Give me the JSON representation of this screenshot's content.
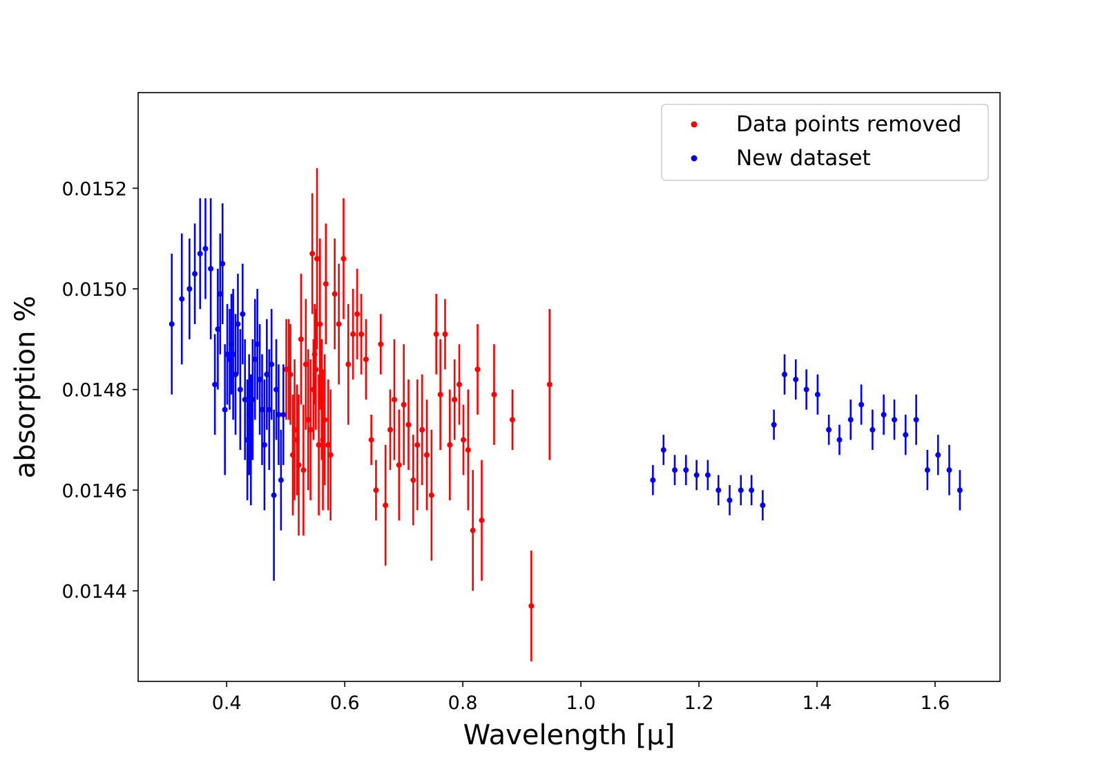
{
  "chart_data": {
    "type": "scatter",
    "title": "",
    "xlabel": "Wavelength [μ]",
    "ylabel": "absorption %",
    "xlim": [
      0.25,
      1.71
    ],
    "ylim": [
      0.01422,
      0.01539
    ],
    "xticks": [
      0.4,
      0.6,
      0.8,
      1.0,
      1.2,
      1.4,
      1.6
    ],
    "xtick_labels": [
      "0.4",
      "0.6",
      "0.8",
      "1.0",
      "1.2",
      "1.4",
      "1.6"
    ],
    "yticks": [
      0.0144,
      0.0146,
      0.0148,
      0.015,
      0.0152
    ],
    "ytick_labels": [
      "0.0144",
      "0.0146",
      "0.0148",
      "0.0150",
      "0.0152"
    ],
    "grid": false,
    "legend_position": "top-right",
    "series": [
      {
        "name": "Data points removed",
        "color": "#ff0000",
        "points": [
          [
            0.501,
            0.01484,
            0.0001
          ],
          [
            0.505,
            0.01484,
            0.0001
          ],
          [
            0.508,
            0.01483,
            0.0001
          ],
          [
            0.512,
            0.01467,
            0.00012
          ],
          [
            0.515,
            0.01472,
            0.00014
          ],
          [
            0.519,
            0.0147,
            0.00011
          ],
          [
            0.522,
            0.01465,
            0.00014
          ],
          [
            0.526,
            0.0149,
            0.00013
          ],
          [
            0.53,
            0.01464,
            0.00013
          ],
          [
            0.534,
            0.01485,
            0.00013
          ],
          [
            0.538,
            0.01474,
            0.00014
          ],
          [
            0.542,
            0.01472,
            0.00014
          ],
          [
            0.545,
            0.01507,
            0.00012
          ],
          [
            0.547,
            0.0148,
            0.0001
          ],
          [
            0.549,
            0.01487,
            0.0001
          ],
          [
            0.551,
            0.01484,
            0.00012
          ],
          [
            0.553,
            0.01506,
            0.00018
          ],
          [
            0.556,
            0.01469,
            0.00014
          ],
          [
            0.558,
            0.01493,
            0.00017
          ],
          [
            0.561,
            0.01478,
            0.00012
          ],
          [
            0.563,
            0.0147,
            0.00014
          ],
          [
            0.566,
            0.01474,
            0.00013
          ],
          [
            0.568,
            0.01501,
            0.00012
          ],
          [
            0.572,
            0.01469,
            0.00013
          ],
          [
            0.576,
            0.01467,
            0.00013
          ],
          [
            0.583,
            0.01499,
            0.00011
          ],
          [
            0.59,
            0.01493,
            0.00012
          ],
          [
            0.598,
            0.01506,
            0.00012
          ],
          [
            0.606,
            0.01485,
            0.00012
          ],
          [
            0.614,
            0.01491,
            9e-05
          ],
          [
            0.621,
            0.01495,
            9e-05
          ],
          [
            0.628,
            0.01491,
            8e-05
          ],
          [
            0.636,
            0.01486,
            8e-05
          ],
          [
            0.645,
            0.0147,
            5e-05
          ],
          [
            0.653,
            0.0146,
            6e-05
          ],
          [
            0.661,
            0.01489,
            6e-05
          ],
          [
            0.669,
            0.01457,
            0.00012
          ],
          [
            0.677,
            0.01472,
            8e-05
          ],
          [
            0.684,
            0.01478,
            0.00012
          ],
          [
            0.692,
            0.01465,
            0.00011
          ],
          [
            0.7,
            0.01477,
            0.00012
          ],
          [
            0.708,
            0.01473,
            9e-05
          ],
          [
            0.716,
            0.01462,
            9e-05
          ],
          [
            0.723,
            0.01469,
            0.00013
          ],
          [
            0.731,
            0.01472,
            0.00011
          ],
          [
            0.739,
            0.01467,
            0.00011
          ],
          [
            0.747,
            0.01459,
            0.00013
          ],
          [
            0.755,
            0.01491,
            8e-05
          ],
          [
            0.762,
            0.01479,
            0.00011
          ],
          [
            0.77,
            0.01491,
            7e-05
          ],
          [
            0.778,
            0.01469,
            0.00011
          ],
          [
            0.786,
            0.01478,
            8e-05
          ],
          [
            0.794,
            0.01481,
            8e-05
          ],
          [
            0.801,
            0.0147,
            7e-05
          ],
          [
            0.809,
            0.01468,
            0.00012
          ],
          [
            0.817,
            0.01452,
            0.00012
          ],
          [
            0.825,
            0.01484,
            9e-05
          ],
          [
            0.832,
            0.01454,
            0.00012
          ],
          [
            0.853,
            0.01479,
            0.0001
          ],
          [
            0.884,
            0.01474,
            6e-05
          ],
          [
            0.916,
            0.01437,
            0.00011
          ],
          [
            0.947,
            0.01481,
            0.00015
          ]
        ]
      },
      {
        "name": "New dataset",
        "color": "#0000ff",
        "points": [
          [
            0.307,
            0.01493,
            0.00014
          ],
          [
            0.324,
            0.01498,
            0.00013
          ],
          [
            0.337,
            0.015,
            0.0001
          ],
          [
            0.346,
            0.01503,
            0.0001
          ],
          [
            0.355,
            0.01507,
            0.00011
          ],
          [
            0.364,
            0.01508,
            0.0001
          ],
          [
            0.373,
            0.01504,
            0.00014
          ],
          [
            0.38,
            0.01481,
            0.0001
          ],
          [
            0.385,
            0.01492,
            0.00012
          ],
          [
            0.389,
            0.01499,
            0.00012
          ],
          [
            0.393,
            0.01505,
            0.00012
          ],
          [
            0.397,
            0.01476,
            0.00013
          ],
          [
            0.401,
            0.01487,
            0.0001
          ],
          [
            0.405,
            0.01486,
            0.0001
          ],
          [
            0.408,
            0.01489,
            0.0001
          ],
          [
            0.411,
            0.01487,
            0.00013
          ],
          [
            0.415,
            0.01483,
            0.00012
          ],
          [
            0.419,
            0.01493,
            0.0001
          ],
          [
            0.423,
            0.0148,
            0.00012
          ],
          [
            0.427,
            0.01495,
            0.0001
          ],
          [
            0.431,
            0.01478,
            0.00012
          ],
          [
            0.435,
            0.0147,
            0.00012
          ],
          [
            0.438,
            0.01475,
            0.00012
          ],
          [
            0.441,
            0.0147,
            0.00013
          ],
          [
            0.444,
            0.01478,
            0.00012
          ],
          [
            0.448,
            0.01486,
            0.00012
          ],
          [
            0.452,
            0.01489,
            0.00011
          ],
          [
            0.456,
            0.01482,
            0.00011
          ],
          [
            0.46,
            0.01476,
            0.00011
          ],
          [
            0.464,
            0.01469,
            0.00013
          ],
          [
            0.468,
            0.01483,
            0.00011
          ],
          [
            0.472,
            0.01476,
            0.00012
          ],
          [
            0.476,
            0.01485,
            0.00011
          ],
          [
            0.48,
            0.01459,
            0.00017
          ],
          [
            0.484,
            0.0148,
            0.0001
          ],
          [
            0.488,
            0.01475,
            0.0001
          ],
          [
            0.492,
            0.01462,
            0.0001
          ],
          [
            0.496,
            0.01475,
            0.0001
          ],
          [
            1.122,
            0.01462,
            3e-05
          ],
          [
            1.14,
            0.01468,
            3e-05
          ],
          [
            1.159,
            0.01464,
            3e-05
          ],
          [
            1.178,
            0.01464,
            3e-05
          ],
          [
            1.196,
            0.01463,
            3e-05
          ],
          [
            1.215,
            0.01463,
            3e-05
          ],
          [
            1.233,
            0.0146,
            3e-05
          ],
          [
            1.252,
            0.01458,
            3e-05
          ],
          [
            1.271,
            0.0146,
            3e-05
          ],
          [
            1.289,
            0.0146,
            3e-05
          ],
          [
            1.308,
            0.01457,
            3e-05
          ],
          [
            1.327,
            0.01473,
            3e-05
          ],
          [
            1.345,
            0.01483,
            4e-05
          ],
          [
            1.364,
            0.01482,
            4e-05
          ],
          [
            1.382,
            0.0148,
            4e-05
          ],
          [
            1.401,
            0.01479,
            4e-05
          ],
          [
            1.42,
            0.01472,
            3e-05
          ],
          [
            1.438,
            0.0147,
            3e-05
          ],
          [
            1.457,
            0.01474,
            4e-05
          ],
          [
            1.475,
            0.01477,
            4e-05
          ],
          [
            1.494,
            0.01472,
            4e-05
          ],
          [
            1.513,
            0.01475,
            4e-05
          ],
          [
            1.531,
            0.01474,
            4e-05
          ],
          [
            1.55,
            0.01471,
            4e-05
          ],
          [
            1.568,
            0.01474,
            5e-05
          ],
          [
            1.587,
            0.01464,
            4e-05
          ],
          [
            1.605,
            0.01467,
            4e-05
          ],
          [
            1.624,
            0.01464,
            5e-05
          ],
          [
            1.642,
            0.0146,
            4e-05
          ]
        ]
      }
    ]
  }
}
